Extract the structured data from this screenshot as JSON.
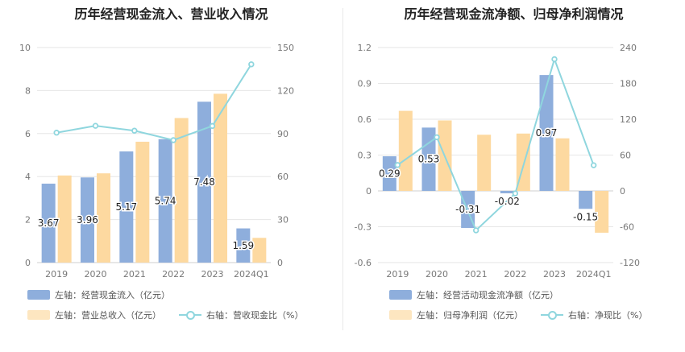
{
  "chart_data": [
    {
      "type": "bar",
      "title": "历年经营现金流入、营业收入情况",
      "categories": [
        "2019",
        "2020",
        "2021",
        "2022",
        "2023",
        "2024Q1"
      ],
      "left_axis": {
        "ticks": [
          "0",
          "2",
          "4",
          "6",
          "8",
          "10"
        ],
        "ylim": [
          0,
          10
        ]
      },
      "right_axis": {
        "ticks": [
          "0",
          "30",
          "60",
          "90",
          "120",
          "150"
        ],
        "ylim": [
          0,
          150
        ]
      },
      "series": [
        {
          "name": "左轴：经营现金流入（亿元）",
          "kind": "bar",
          "axis": "left",
          "color": "#8eaedc",
          "values": [
            3.67,
            3.96,
            5.17,
            5.74,
            7.48,
            1.59
          ],
          "labels": [
            "3.67",
            "3.96",
            "5.17",
            "5.74",
            "7.48",
            "1.59"
          ]
        },
        {
          "name": "左轴：营业总收入（亿元）",
          "kind": "bar",
          "axis": "left",
          "color": "#fdd9a0",
          "values": [
            4.05,
            4.15,
            5.62,
            6.72,
            7.85,
            1.15
          ]
        },
        {
          "name": "右轴：营收现金比（%）",
          "kind": "line",
          "axis": "right",
          "color": "#8fd6de",
          "values": [
            90.6,
            95.4,
            92.0,
            85.4,
            95.3,
            138.3
          ]
        }
      ]
    },
    {
      "type": "bar",
      "title": "历年经营现金流净额、归母净利润情况",
      "categories": [
        "2019",
        "2020",
        "2021",
        "2022",
        "2023",
        "2024Q1"
      ],
      "left_axis": {
        "ticks": [
          "-0.6",
          "-0.3",
          "0",
          "0.3",
          "0.6",
          "0.9",
          "1.2"
        ],
        "ylim": [
          -0.6,
          1.2
        ]
      },
      "right_axis": {
        "ticks": [
          "-120",
          "-60",
          "0",
          "60",
          "120",
          "180",
          "240"
        ],
        "ylim": [
          -120,
          240
        ]
      },
      "series": [
        {
          "name": "左轴：经营活动现金流净额（亿元）",
          "kind": "bar",
          "axis": "left",
          "color": "#8eaedc",
          "values": [
            0.29,
            0.53,
            -0.31,
            -0.02,
            0.97,
            -0.15
          ],
          "labels": [
            "0.29",
            "0.53",
            "-0.31",
            "-0.02",
            "0.97",
            "-0.15"
          ]
        },
        {
          "name": "左轴：归母净利润（亿元）",
          "kind": "bar",
          "axis": "left",
          "color": "#fdd9a0",
          "values": [
            0.67,
            0.59,
            0.47,
            0.48,
            0.44,
            -0.35
          ]
        },
        {
          "name": "右轴：净现比（%）",
          "kind": "line",
          "axis": "right",
          "color": "#8fd6de",
          "values": [
            43.3,
            89.8,
            -66.0,
            -4.2,
            220.5,
            42.9
          ]
        }
      ]
    }
  ]
}
